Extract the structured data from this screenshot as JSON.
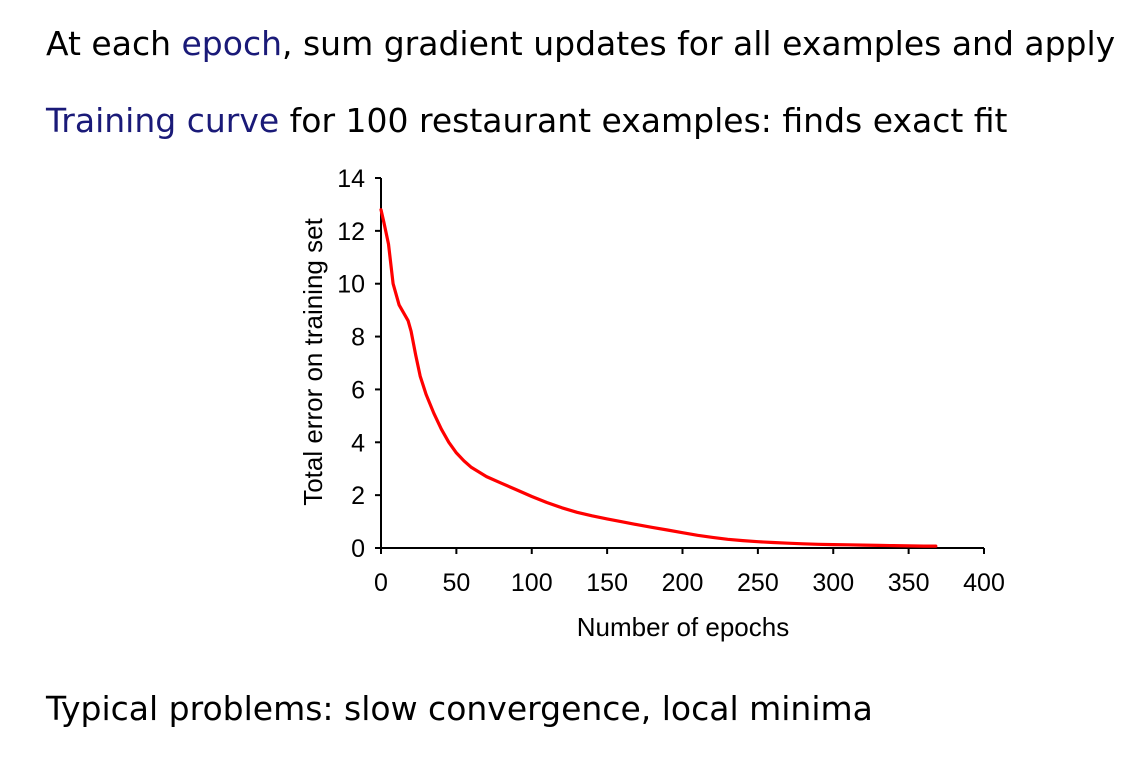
{
  "slide": {
    "line1": {
      "before": "At each ",
      "highlight": "epoch",
      "after": ", sum gradient updates for all examples and apply"
    },
    "line2": {
      "highlight": "Training curve",
      "after": " for 100 restaurant examples: finds exact fit"
    },
    "line3": "Typical problems: slow convergence, local minima"
  },
  "colors": {
    "highlight": "#1a1a78",
    "curve": "#ff0000"
  },
  "chart_data": {
    "type": "line",
    "xlabel": "Number of epochs",
    "ylabel": "Total error on training set",
    "xlim": [
      0,
      400
    ],
    "ylim": [
      0,
      14
    ],
    "xticks": [
      0,
      50,
      100,
      150,
      200,
      250,
      300,
      350,
      400
    ],
    "yticks": [
      0,
      2,
      4,
      6,
      8,
      10,
      12,
      14
    ],
    "grid": false,
    "series": [
      {
        "color": "#ff0000",
        "x": [
          0,
          2,
          5,
          8,
          12,
          15,
          18,
          20,
          23,
          26,
          30,
          35,
          40,
          45,
          50,
          55,
          60,
          70,
          80,
          90,
          100,
          110,
          120,
          130,
          140,
          150,
          160,
          170,
          180,
          190,
          200,
          210,
          220,
          230,
          240,
          250,
          260,
          270,
          280,
          290,
          300,
          310,
          320,
          330,
          340,
          350,
          360,
          368
        ],
        "y": [
          12.8,
          12.3,
          11.5,
          10.0,
          9.2,
          8.9,
          8.6,
          8.2,
          7.3,
          6.5,
          5.8,
          5.1,
          4.5,
          4.0,
          3.6,
          3.3,
          3.05,
          2.7,
          2.45,
          2.2,
          1.95,
          1.72,
          1.52,
          1.35,
          1.22,
          1.1,
          0.99,
          0.88,
          0.78,
          0.68,
          0.58,
          0.48,
          0.4,
          0.33,
          0.28,
          0.24,
          0.21,
          0.18,
          0.16,
          0.14,
          0.13,
          0.12,
          0.11,
          0.1,
          0.09,
          0.08,
          0.07,
          0.07
        ]
      }
    ]
  }
}
